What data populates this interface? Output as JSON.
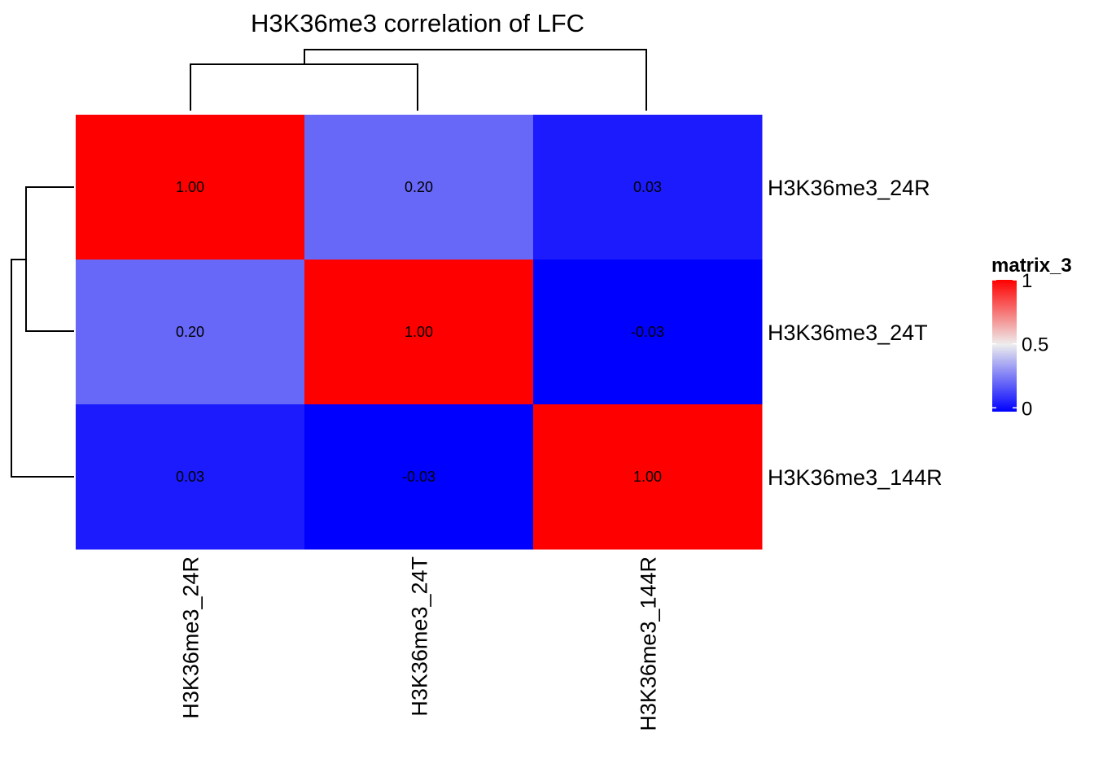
{
  "chart_data": {
    "type": "heatmap",
    "title": "H3K36me3 correlation of LFC",
    "rows": [
      "H3K36me3_24R",
      "H3K36me3_24T",
      "H3K36me3_144R"
    ],
    "columns": [
      "H3K36me3_24R",
      "H3K36me3_24T",
      "H3K36me3_144R"
    ],
    "values": [
      [
        1.0,
        0.2,
        0.03
      ],
      [
        0.2,
        1.0,
        -0.03
      ],
      [
        0.03,
        -0.03,
        1.0
      ]
    ],
    "cell_labels": [
      [
        "1.00",
        "0.20",
        "0.03"
      ],
      [
        "0.20",
        "1.00",
        "-0.03"
      ],
      [
        "0.03",
        "-0.03",
        "1.00"
      ]
    ],
    "color_scale": {
      "low": "#0000FF",
      "mid": "#EEEEEE",
      "high": "#FF0000",
      "low_value": -0.03,
      "mid_value": 0.5,
      "high_value": 1
    },
    "legend": {
      "title": "matrix_3",
      "ticks": [
        "1",
        "0.5",
        "0"
      ],
      "tick_values": [
        1,
        0.5,
        0
      ],
      "placement": "right"
    },
    "dendrograms": {
      "row": "top",
      "column": "left"
    }
  }
}
